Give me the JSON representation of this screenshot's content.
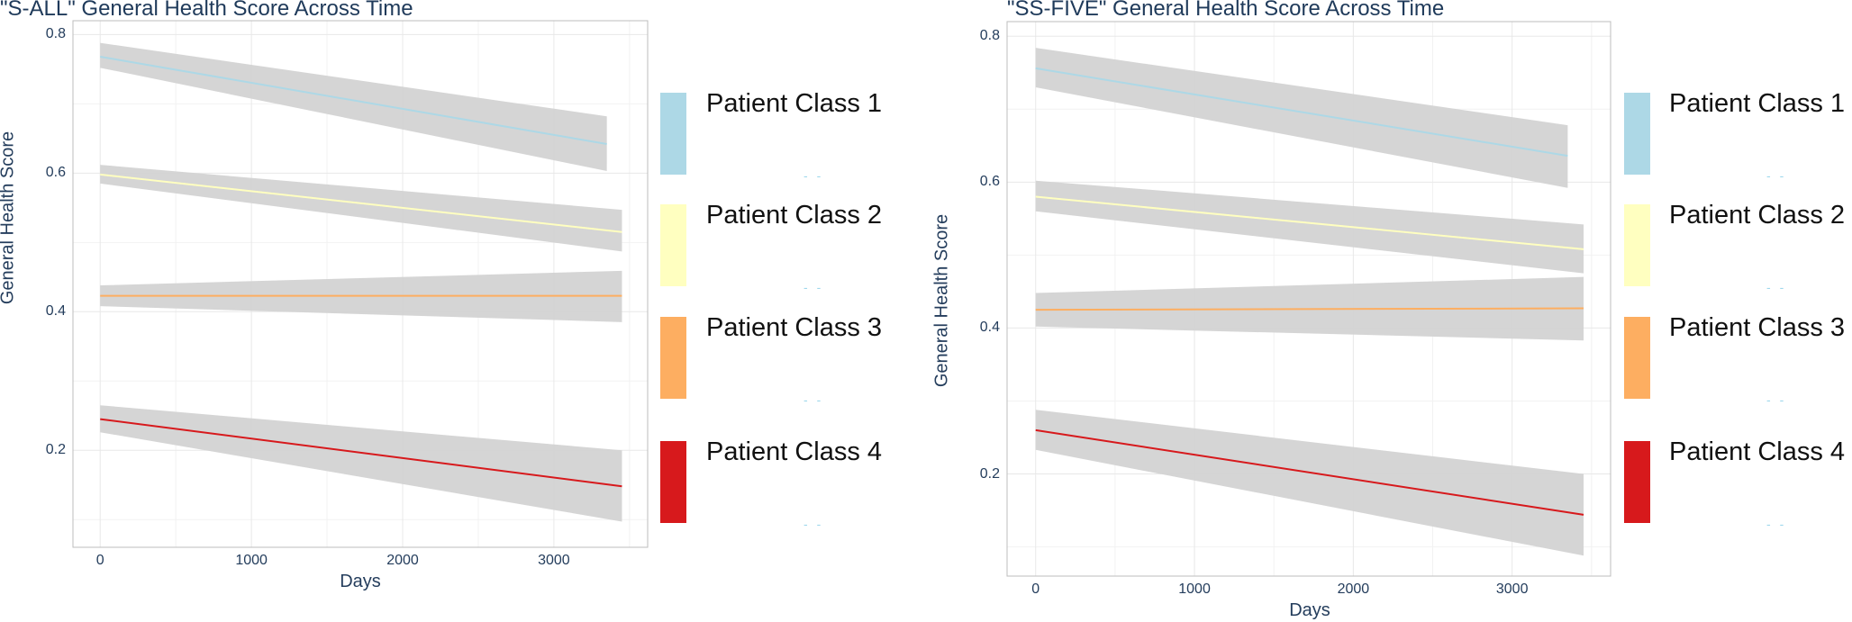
{
  "chart_data": [
    {
      "type": "line",
      "title": "\"S-ALL\" General Health Score Across Time",
      "xlabel": "Days",
      "ylabel": "General Health Score",
      "xlim": [
        -180,
        3620
      ],
      "ylim": [
        0.06,
        0.82
      ],
      "xticks": [
        0,
        1000,
        2000,
        3000
      ],
      "yticks": [
        0.2,
        0.4,
        0.6,
        0.8
      ],
      "grid": true,
      "legend_position": "right",
      "series": [
        {
          "name": "Patient Class 1",
          "color": "#add8e6",
          "x": [
            0,
            3350
          ],
          "y": [
            0.768,
            0.642
          ],
          "ci_lower": [
            0.752,
            0.603
          ],
          "ci_upper": [
            0.788,
            0.682
          ]
        },
        {
          "name": "Patient Class 2",
          "color": "#ffffc0",
          "x": [
            0,
            3450
          ],
          "y": [
            0.598,
            0.515
          ],
          "ci_lower": [
            0.585,
            0.487
          ],
          "ci_upper": [
            0.612,
            0.547
          ]
        },
        {
          "name": "Patient Class 3",
          "color": "#fdae61",
          "x": [
            0,
            3450
          ],
          "y": [
            0.423,
            0.423
          ],
          "ci_lower": [
            0.408,
            0.385
          ],
          "ci_upper": [
            0.438,
            0.459
          ]
        },
        {
          "name": "Patient Class 4",
          "color": "#d7191c",
          "x": [
            0,
            3450
          ],
          "y": [
            0.245,
            0.148
          ],
          "ci_lower": [
            0.226,
            0.097
          ],
          "ci_upper": [
            0.265,
            0.2
          ]
        }
      ]
    },
    {
      "type": "line",
      "title": "\"SS-FIVE\" General Health Score Across Time",
      "xlabel": "Days",
      "ylabel": "General Health Score",
      "xlim": [
        -180,
        3620
      ],
      "ylim": [
        0.06,
        0.82
      ],
      "xticks": [
        0,
        1000,
        2000,
        3000
      ],
      "yticks": [
        0.2,
        0.4,
        0.6,
        0.8
      ],
      "grid": true,
      "legend_position": "right",
      "series": [
        {
          "name": "Patient Class 1",
          "color": "#add8e6",
          "x": [
            0,
            3350
          ],
          "y": [
            0.756,
            0.636
          ],
          "ci_lower": [
            0.73,
            0.592
          ],
          "ci_upper": [
            0.784,
            0.678
          ]
        },
        {
          "name": "Patient Class 2",
          "color": "#ffffc0",
          "x": [
            0,
            3450
          ],
          "y": [
            0.58,
            0.508
          ],
          "ci_lower": [
            0.56,
            0.475
          ],
          "ci_upper": [
            0.602,
            0.542
          ]
        },
        {
          "name": "Patient Class 3",
          "color": "#fdae61",
          "x": [
            0,
            3450
          ],
          "y": [
            0.425,
            0.427
          ],
          "ci_lower": [
            0.402,
            0.383
          ],
          "ci_upper": [
            0.448,
            0.47
          ]
        },
        {
          "name": "Patient Class 4",
          "color": "#d7191c",
          "x": [
            0,
            3450
          ],
          "y": [
            0.26,
            0.144
          ],
          "ci_lower": [
            0.233,
            0.088
          ],
          "ci_upper": [
            0.288,
            0.2
          ]
        }
      ]
    }
  ],
  "ui": {
    "legend_items": [
      "Patient Class 1",
      "Patient Class 2",
      "Patient Class 3",
      "Patient Class 4"
    ],
    "legend_colors": [
      "#add8e6",
      "#ffffc0",
      "#fdae61",
      "#d7191c"
    ],
    "ci_band_color": "#d3d3d3",
    "text_color": "#243d5c"
  }
}
